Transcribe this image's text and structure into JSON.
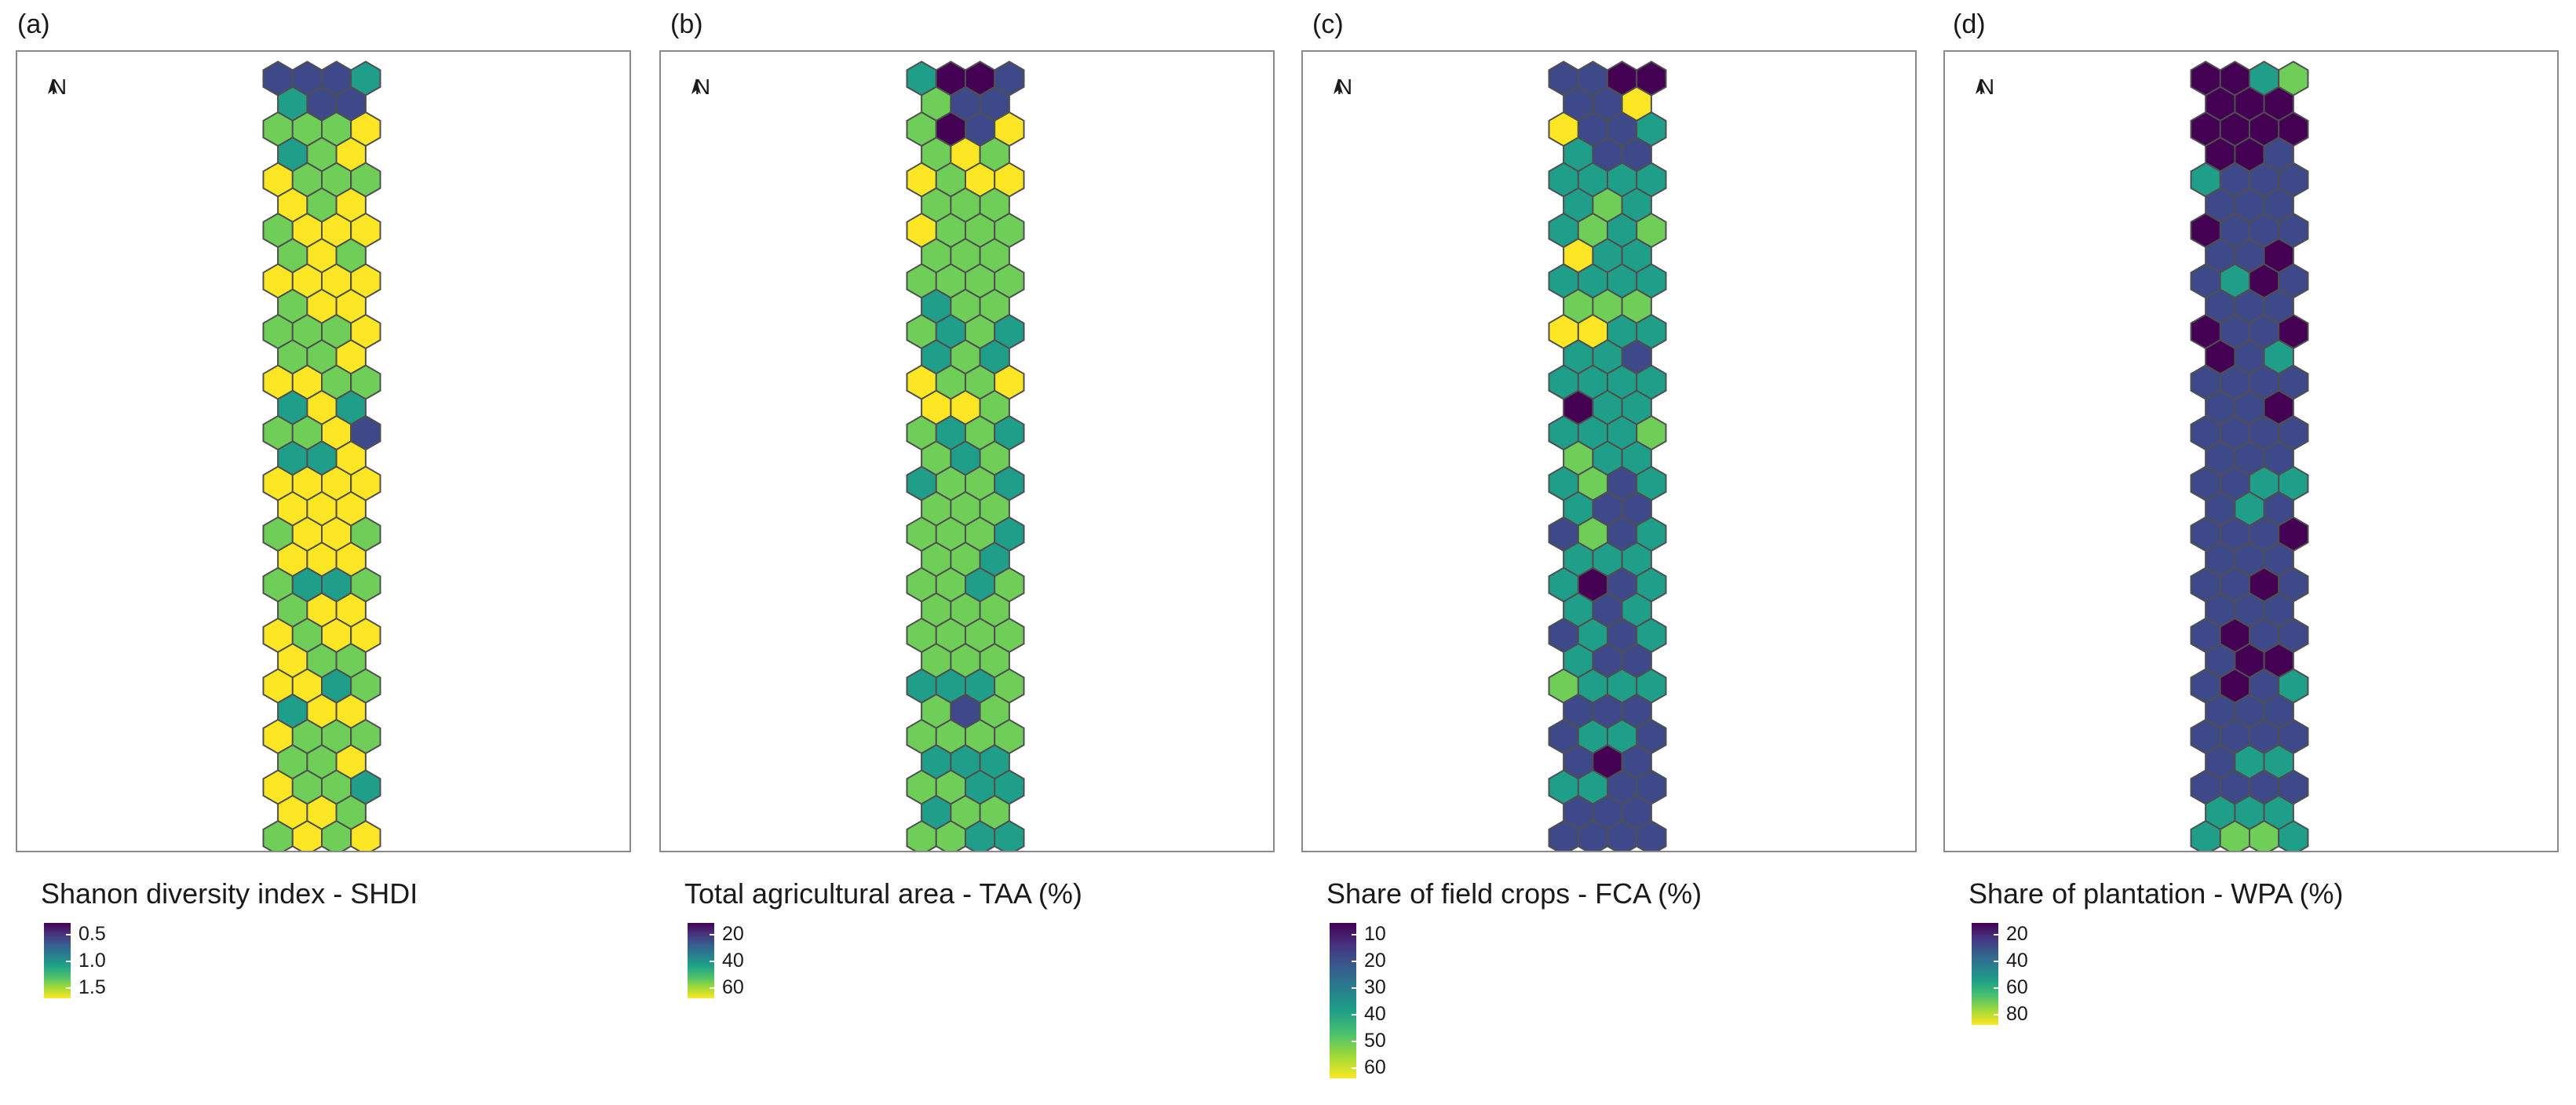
{
  "panels": [
    {
      "id": "a",
      "label": "(a)",
      "north_label": "N",
      "legend_title": "Shanon diversity index - SHDI",
      "legend_ticks": [
        "0.5",
        "1.0",
        "1.5"
      ],
      "scale_reversed": true,
      "levels": "44433442221321122212121112121111211222122111223132214331111111121121112332211121112211323111222221122311221211222222221223122221222222122221123222232334223212235223343445532332334533333"
    },
    {
      "id": "b",
      "label": "(b)",
      "north_label": "N",
      "legend_title": "Total agricultural area - TAA (%)",
      "legend_ticks": [
        "20",
        "40",
        "60"
      ],
      "scale_reversed": true,
      "levels": "35542442541212121122212222222222322232332312211122323232322322222232232232222222222233322422222333223332222332332333233433433334445455424543543554354454344"
    },
    {
      "id": "c",
      "label": "(c)",
      "north_label": "N",
      "legend_title": "Share of field crops - FCA (%)",
      "legend_ticks": [
        "10",
        "20",
        "30",
        "40",
        "50",
        "60"
      ],
      "scale_reversed": true,
      "levels": "44554411443344333332332321333333222113333433335333332233324334442433333543343434334423334444334454334444444444455454544554555555"
    },
    {
      "id": "d",
      "label": "(d)",
      "north_label": "N",
      "legend_title": "Share of plantation - WPA (%)",
      "legend_ticks": [
        "20",
        "40",
        "60",
        "80"
      ],
      "scale_reversed": false,
      "levels": "55325555555554344444454444454354444544554344444454444444443343444454444454444454445545434444444433444433332232422222221121221"
    }
  ],
  "colors": {
    "viridis": [
      "#fde725",
      "#a0da39",
      "#4ac16d",
      "#1fa187",
      "#277f8e",
      "#365c8d",
      "#46327e",
      "#440154"
    ],
    "hex_stroke": "#4f4f4f",
    "frame_stroke": "#8a8a8a"
  }
}
